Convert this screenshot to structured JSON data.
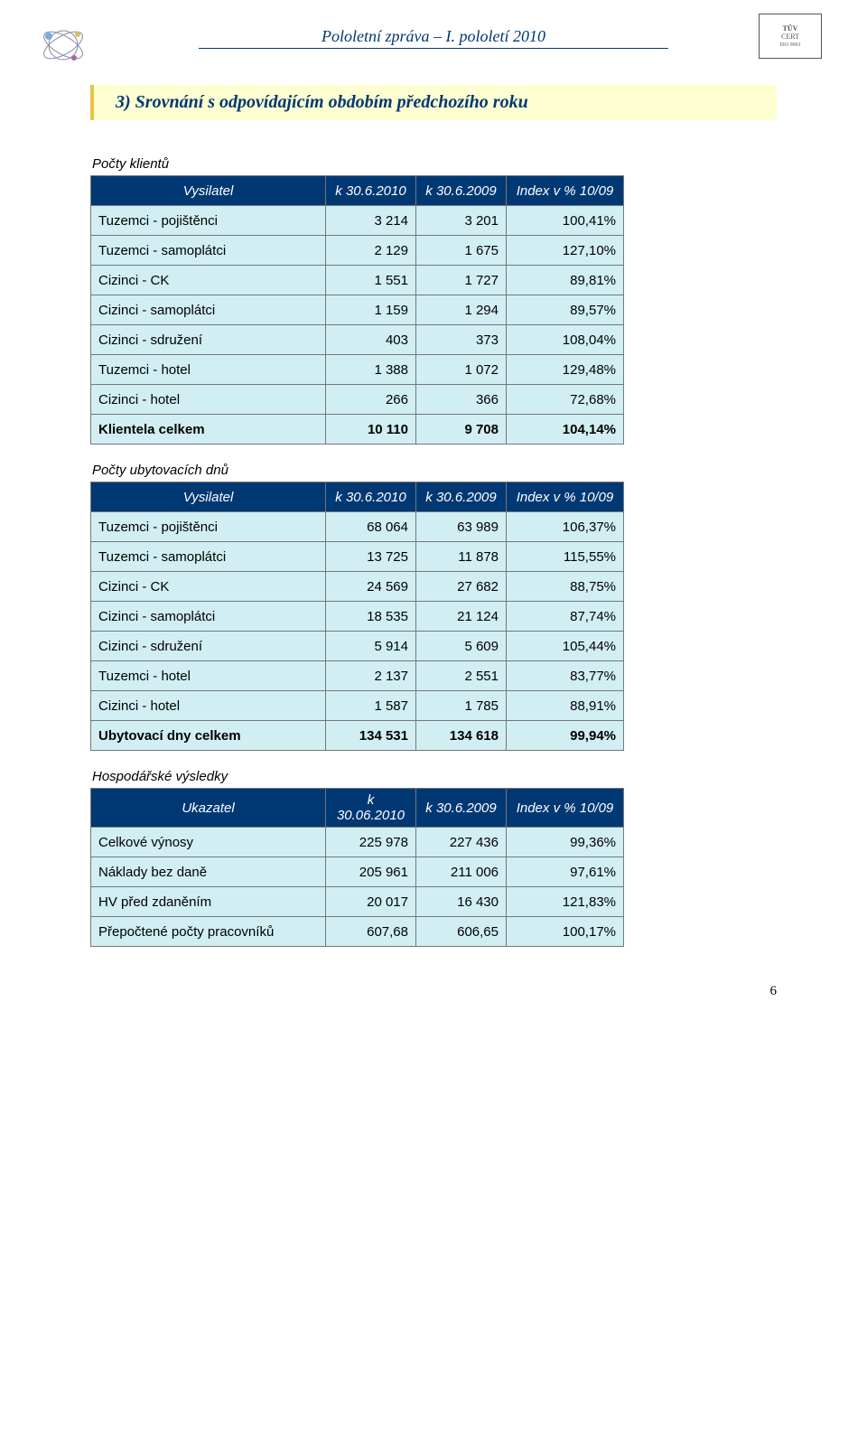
{
  "header": {
    "title": "Pololetní zpráva – I. pololetí 2010",
    "page_number": "6",
    "tuv_top": "TÜV",
    "tuv_mid": "CERT",
    "tuv_bottom": "ISO 9001"
  },
  "section": {
    "title": "3)  Srovnání s odpovídajícím obdobím předchozího roku"
  },
  "tables": {
    "clients": {
      "caption": "Počty klientů",
      "col_header": "Vysilatel",
      "col1": "k 30.6.2010",
      "col2": "k 30.6.2009",
      "col3": "Index v % 10/09",
      "rows": [
        {
          "label": "Tuzemci - pojištěnci",
          "v1": "3 214",
          "v2": "3 201",
          "v3": "100,41%"
        },
        {
          "label": "Tuzemci - samoplátci",
          "v1": "2 129",
          "v2": "1 675",
          "v3": "127,10%"
        },
        {
          "label": "Cizinci    - CK",
          "v1": "1 551",
          "v2": "1 727",
          "v3": "89,81%"
        },
        {
          "label": "Cizinci    - samoplátci",
          "v1": "1 159",
          "v2": "1 294",
          "v3": "89,57%"
        },
        {
          "label": "Cizinci    - sdružení",
          "v1": "403",
          "v2": "373",
          "v3": "108,04%"
        },
        {
          "label": "Tuzemci - hotel",
          "v1": "1 388",
          "v2": "1 072",
          "v3": "129,48%"
        },
        {
          "label": "Cizinci    - hotel",
          "v1": "266",
          "v2": "366",
          "v3": "72,68%"
        }
      ],
      "total": {
        "label": "Klientela celkem",
        "v1": "10 110",
        "v2": "9 708",
        "v3": "104,14%"
      }
    },
    "days": {
      "caption": "Počty ubytovacích dnů",
      "col_header": "Vysilatel",
      "col1": "k 30.6.2010",
      "col2": "k 30.6.2009",
      "col3": "Index v % 10/09",
      "rows": [
        {
          "label": "Tuzemci - pojištěnci",
          "v1": "68 064",
          "v2": "63 989",
          "v3": "106,37%"
        },
        {
          "label": "Tuzemci - samoplátci",
          "v1": "13 725",
          "v2": "11 878",
          "v3": "115,55%"
        },
        {
          "label": "Cizinci    - CK",
          "v1": "24 569",
          "v2": "27 682",
          "v3": "88,75%"
        },
        {
          "label": "Cizinci    - samoplátci",
          "v1": "18 535",
          "v2": "21 124",
          "v3": "87,74%"
        },
        {
          "label": "Cizinci    - sdružení",
          "v1": "5 914",
          "v2": "5 609",
          "v3": "105,44%"
        },
        {
          "label": "Tuzemci - hotel",
          "v1": "2 137",
          "v2": "2 551",
          "v3": "83,77%"
        },
        {
          "label": "Cizinci    - hotel",
          "v1": "1 587",
          "v2": "1 785",
          "v3": "88,91%"
        }
      ],
      "total": {
        "label": "Ubytovací dny celkem",
        "v1": "134 531",
        "v2": "134 618",
        "v3": "99,94%"
      }
    },
    "financial": {
      "caption": "Hospodářské výsledky",
      "col_header": "Ukazatel",
      "col1": "k 30.06.2010",
      "col2": "k 30.6.2009",
      "col3": "Index v % 10/09",
      "rows": [
        {
          "label": "Celkové výnosy",
          "v1": "225 978",
          "v2": "227 436",
          "v3": "99,36%"
        },
        {
          "label": "Náklady bez daně",
          "v1": "205 961",
          "v2": "211 006",
          "v3": "97,61%"
        },
        {
          "label": "HV před zdaněním",
          "v1": "20 017",
          "v2": "16 430",
          "v3": "121,83%"
        },
        {
          "label": "Přepočtené počty pracovníků",
          "v1": "607,68",
          "v2": "606,65",
          "v3": "100,17%"
        }
      ]
    }
  }
}
